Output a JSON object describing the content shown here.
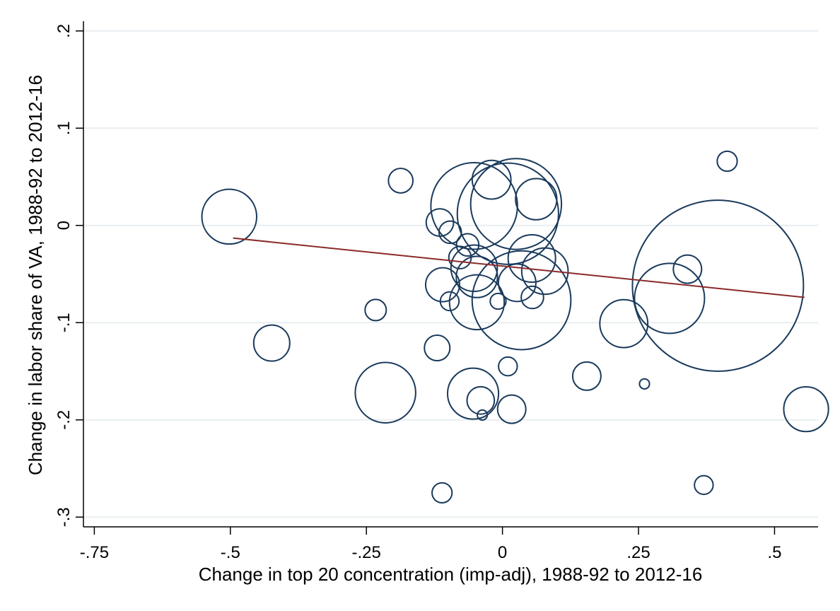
{
  "chart_data": {
    "type": "scatter",
    "title": "",
    "xlabel": "Change in top 20 concentration (imp-adj), 1988-92 to 2012-16",
    "ylabel": "Change in labor share of VA, 1988-92 to 2012-16",
    "xlim": [
      -0.77,
      0.58
    ],
    "ylim": [
      -0.31,
      0.21
    ],
    "x_ticks": [
      {
        "value": -0.75,
        "label": "-.75"
      },
      {
        "value": -0.5,
        "label": "-.5"
      },
      {
        "value": -0.25,
        "label": "-.25"
      },
      {
        "value": 0,
        "label": "0"
      },
      {
        "value": 0.25,
        "label": ".25"
      },
      {
        "value": 0.5,
        "label": ".5"
      }
    ],
    "y_ticks": [
      {
        "value": -0.3,
        "label": "-.3"
      },
      {
        "value": -0.2,
        "label": "-.2"
      },
      {
        "value": -0.1,
        "label": "-.1"
      },
      {
        "value": 0,
        "label": "0"
      },
      {
        "value": 0.1,
        "label": ".1"
      },
      {
        "value": 0.2,
        "label": ".2"
      }
    ],
    "grid": true,
    "legend": "none",
    "marker": "hollow-circle-weighted",
    "colors": {
      "marker": "#1a3a5c",
      "fit_line": "#8b2a2a",
      "grid": "#e8eef0",
      "axis": "#000000"
    },
    "points": [
      {
        "x": -0.502,
        "y": 0.009,
        "w": 0.6
      },
      {
        "x": -0.187,
        "y": 0.046,
        "w": 0.12
      },
      {
        "x": -0.233,
        "y": -0.087,
        "w": 0.09
      },
      {
        "x": -0.424,
        "y": -0.121,
        "w": 0.26
      },
      {
        "x": -0.215,
        "y": -0.172,
        "w": 0.73
      },
      {
        "x": -0.115,
        "y": 0.003,
        "w": 0.15
      },
      {
        "x": -0.096,
        "y": -0.007,
        "w": 0.1
      },
      {
        "x": -0.064,
        "y": -0.02,
        "w": 0.1
      },
      {
        "x": -0.078,
        "y": -0.033,
        "w": 0.1
      },
      {
        "x": -0.11,
        "y": -0.061,
        "w": 0.23
      },
      {
        "x": -0.097,
        "y": -0.078,
        "w": 0.07
      },
      {
        "x": -0.12,
        "y": -0.126,
        "w": 0.13
      },
      {
        "x": -0.111,
        "y": -0.275,
        "w": 0.08
      },
      {
        "x": -0.052,
        "y": 0.02,
        "w": 1.5
      },
      {
        "x": -0.02,
        "y": 0.047,
        "w": 0.3
      },
      {
        "x": 0.025,
        "y": 0.022,
        "w": 1.65
      },
      {
        "x": 0.01,
        "y": 0.012,
        "w": 2.05
      },
      {
        "x": 0.062,
        "y": 0.027,
        "w": 0.34
      },
      {
        "x": -0.052,
        "y": -0.044,
        "w": 0.43
      },
      {
        "x": -0.047,
        "y": -0.053,
        "w": 0.34
      },
      {
        "x": 0.054,
        "y": -0.034,
        "w": 0.45
      },
      {
        "x": 0.078,
        "y": -0.047,
        "w": 0.43
      },
      {
        "x": -0.047,
        "y": -0.079,
        "w": 0.6
      },
      {
        "x": 0.027,
        "y": -0.059,
        "w": 0.28
      },
      {
        "x": 0.035,
        "y": -0.077,
        "w": 1.95
      },
      {
        "x": -0.008,
        "y": -0.078,
        "w": 0.05
      },
      {
        "x": 0.055,
        "y": -0.074,
        "w": 0.1
      },
      {
        "x": -0.054,
        "y": -0.173,
        "w": 0.52
      },
      {
        "x": -0.04,
        "y": -0.18,
        "w": 0.15
      },
      {
        "x": -0.037,
        "y": -0.195,
        "w": 0.02
      },
      {
        "x": 0.01,
        "y": -0.145,
        "w": 0.07
      },
      {
        "x": 0.017,
        "y": -0.189,
        "w": 0.16
      },
      {
        "x": 0.155,
        "y": -0.155,
        "w": 0.16
      },
      {
        "x": 0.223,
        "y": -0.101,
        "w": 0.46
      },
      {
        "x": 0.261,
        "y": -0.163,
        "w": 0.02
      },
      {
        "x": 0.307,
        "y": -0.075,
        "w": 0.98
      },
      {
        "x": 0.34,
        "y": -0.045,
        "w": 0.16
      },
      {
        "x": 0.396,
        "y": -0.062,
        "w": 5.85
      },
      {
        "x": 0.37,
        "y": -0.267,
        "w": 0.07
      },
      {
        "x": 0.413,
        "y": 0.066,
        "w": 0.08
      },
      {
        "x": 0.558,
        "y": -0.189,
        "w": 0.4
      }
    ],
    "fit_line": {
      "x": [
        -0.495,
        0.555
      ],
      "y": [
        -0.013,
        -0.074
      ]
    }
  }
}
